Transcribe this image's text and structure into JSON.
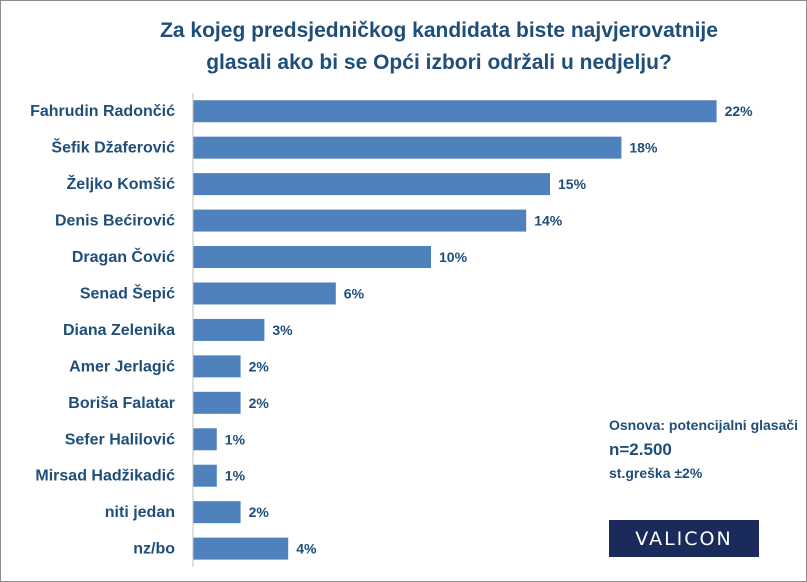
{
  "chart_data": {
    "type": "bar",
    "orientation": "horizontal",
    "title": "Za kojeg predsjedničkog kandidata biste najvjerovatnije glasali ako bi se Opći izbori održali u nedjelju?",
    "categories": [
      "Fahrudin Radončić",
      "Šefik Džaferović",
      "Željko Komšić",
      "Denis Bećirović",
      "Dragan Čović",
      "Senad Šepić",
      "Diana Zelenika",
      "Amer Jerlagić",
      "Boriša Falatar",
      "Sefer Halilović",
      "Mirsad Hadžikadić",
      "niti jedan",
      "nz/bo"
    ],
    "values": [
      22,
      18,
      15,
      14,
      10,
      6,
      3,
      2,
      2,
      1,
      1,
      2,
      4
    ],
    "value_labels": [
      "22%",
      "18%",
      "15%",
      "14%",
      "10%",
      "6%",
      "3%",
      "2%",
      "2%",
      "1%",
      "1%",
      "2%",
      "4%"
    ],
    "bar_color": "#4f81bd",
    "text_color": "#1f4e79",
    "grid": false
  },
  "note": {
    "base": "Osnova: potencijalni glasači",
    "n": "n=2.500",
    "error": "st.greška ±2%"
  },
  "logo": "VALICON"
}
